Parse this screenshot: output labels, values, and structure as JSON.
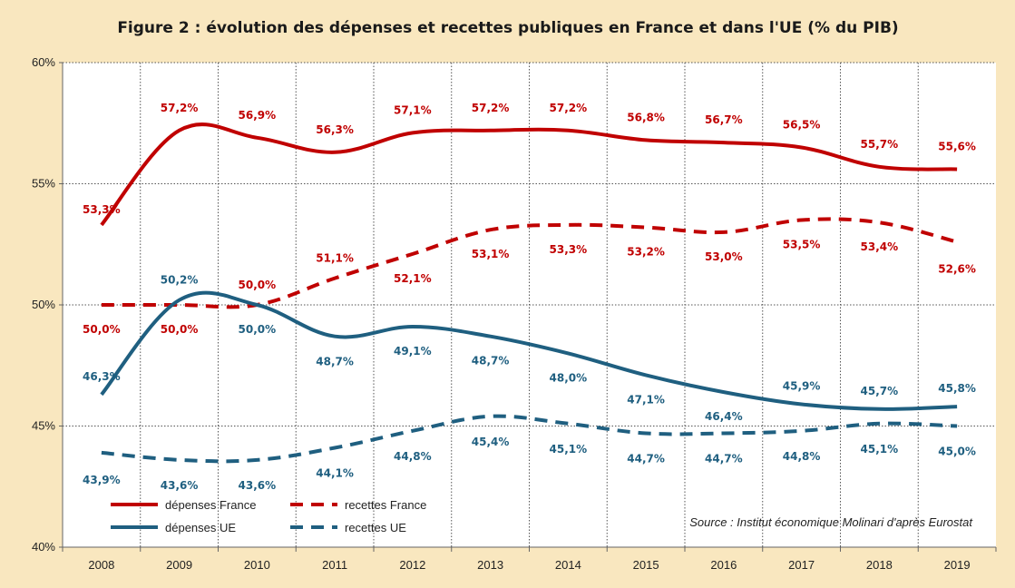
{
  "chart_data": {
    "type": "line",
    "title": "Figure 2 : évolution des dépenses et recettes publiques en France et dans l'UE (% du PIB)",
    "source": "Source : Institut économique Molinari d'après Eurostat",
    "xlabel": "",
    "ylabel": "",
    "ylim": [
      40,
      60
    ],
    "yticks": [
      40,
      45,
      50,
      55,
      60
    ],
    "ytick_labels": [
      "40%",
      "45%",
      "50%",
      "55%",
      "60%"
    ],
    "grid": true,
    "legend_position": "bottom-left",
    "categories": [
      "2008",
      "2009",
      "2010",
      "2011",
      "2012",
      "2013",
      "2014",
      "2015",
      "2016",
      "2017",
      "2018",
      "2019"
    ],
    "series": [
      {
        "name": "dépenses France",
        "color": "#c00000",
        "style": "solid",
        "values": [
          53.3,
          57.2,
          56.9,
          56.3,
          57.1,
          57.2,
          57.2,
          56.8,
          56.7,
          56.5,
          55.7,
          55.6
        ],
        "labels": [
          "53,3%",
          "57,2%",
          "56,9%",
          "56,3%",
          "57,1%",
          "57,2%",
          "57,2%",
          "56,8%",
          "56,7%",
          "56,5%",
          "55,7%",
          "55,6%"
        ]
      },
      {
        "name": "recettes France",
        "color": "#c00000",
        "style": "dashed",
        "values": [
          50.0,
          50.0,
          50.0,
          51.1,
          52.1,
          53.1,
          53.3,
          53.2,
          53.0,
          53.5,
          53.4,
          52.6
        ],
        "labels": [
          "50,0%",
          "50,0%",
          "50,0%",
          "51,1%",
          "52,1%",
          "53,1%",
          "53,3%",
          "53,2%",
          "53,0%",
          "53,5%",
          "53,4%",
          "52,6%"
        ]
      },
      {
        "name": "dépenses UE",
        "color": "#1f5f80",
        "style": "solid",
        "values": [
          46.3,
          50.2,
          50.0,
          48.7,
          49.1,
          48.7,
          48.0,
          47.1,
          46.4,
          45.9,
          45.7,
          45.8
        ],
        "labels": [
          "46,3%",
          "50,2%",
          "50,0%",
          "48,7%",
          "49,1%",
          "48,7%",
          "48,0%",
          "47,1%",
          "46,4%",
          "45,9%",
          "45,7%",
          "45,8%"
        ]
      },
      {
        "name": "recettes UE",
        "color": "#1f5f80",
        "style": "dashed",
        "values": [
          43.9,
          43.6,
          43.6,
          44.1,
          44.8,
          45.4,
          45.1,
          44.7,
          44.7,
          44.8,
          45.1,
          45.0
        ],
        "labels": [
          "43,9%",
          "43,6%",
          "43,6%",
          "44,1%",
          "44,8%",
          "45,4%",
          "45,1%",
          "44,7%",
          "44,7%",
          "44,8%",
          "45,1%",
          "45,0%"
        ]
      }
    ]
  }
}
